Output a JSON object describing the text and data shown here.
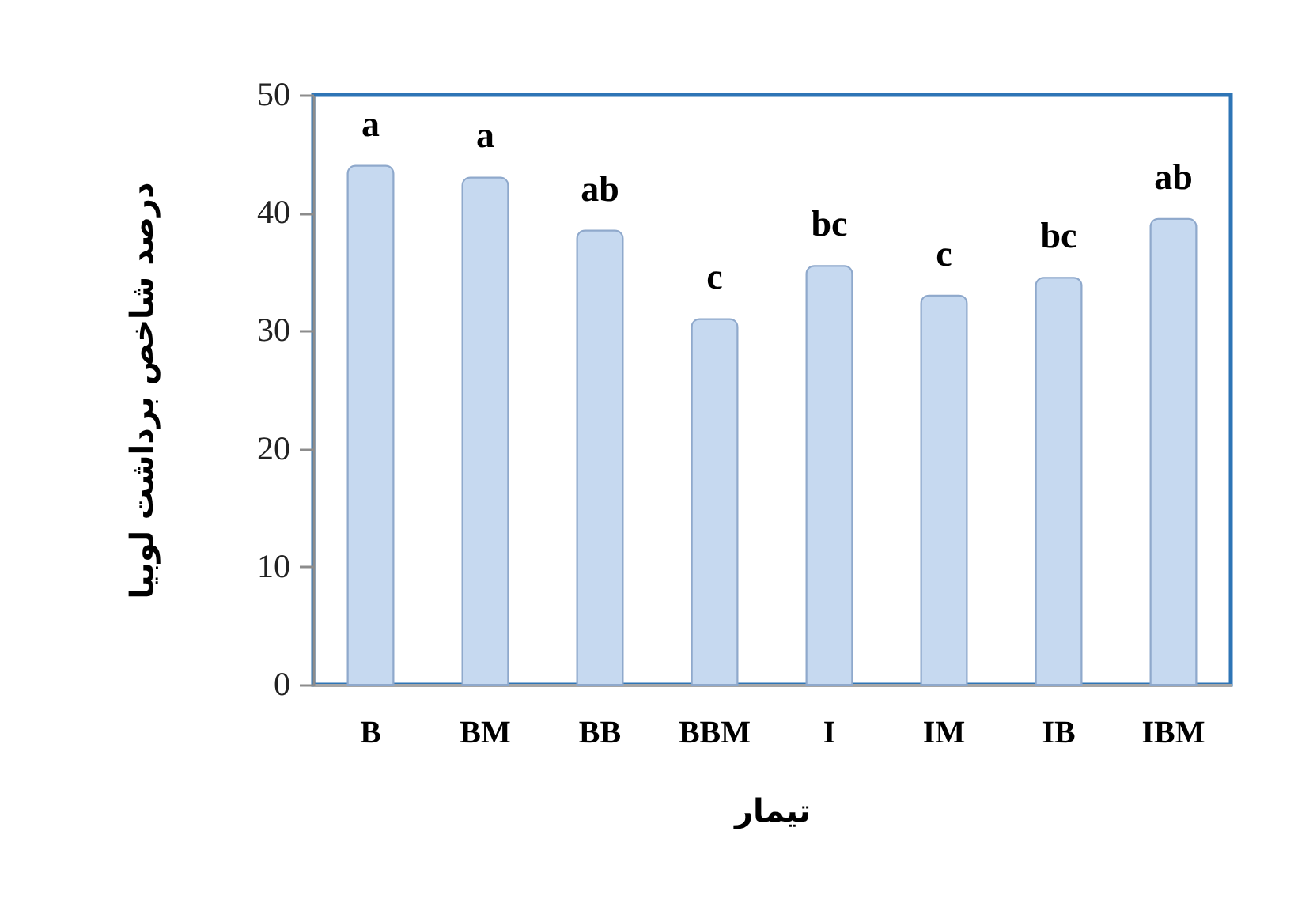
{
  "chart_data": {
    "type": "bar",
    "xlabel": "تیمار",
    "ylabel": "درصد شاخص برداشت لوبیا",
    "categories": [
      "B",
      "BM",
      "BB",
      "BBM",
      "I",
      "IM",
      "IB",
      "IBM"
    ],
    "values": [
      44,
      43,
      38.5,
      31,
      35.5,
      33,
      34.5,
      39.5
    ],
    "value_labels": [
      "a",
      "a",
      "ab",
      "c",
      "bc",
      "c",
      "bc",
      "ab"
    ],
    "color": "#c6d9f0",
    "ylim": [
      0,
      50
    ],
    "yticks": [
      0,
      10,
      20,
      30,
      40,
      50
    ],
    "grid": false
  }
}
